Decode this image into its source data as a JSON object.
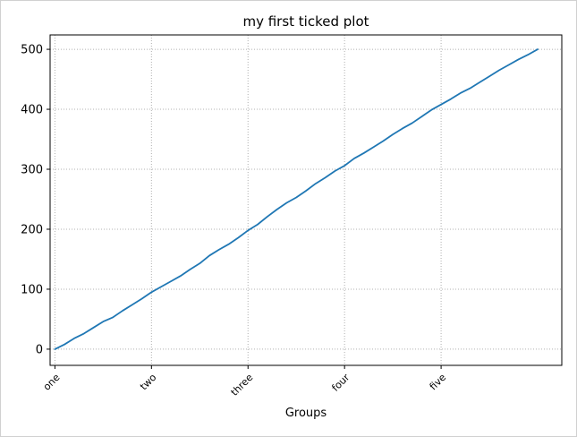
{
  "chart_data": {
    "type": "line",
    "title": "my first ticked plot",
    "xlabel": "Groups",
    "ylabel": "",
    "xlim": [
      -5,
      525
    ],
    "ylim": [
      -27,
      524
    ],
    "xticks": [
      0,
      100,
      200,
      300,
      400
    ],
    "xtick_labels": [
      "one",
      "two",
      "three",
      "four",
      "five"
    ],
    "yticks": [
      0,
      100,
      200,
      300,
      400,
      500
    ],
    "ytick_labels": [
      "0",
      "100",
      "200",
      "300",
      "400",
      "500"
    ],
    "grid": true,
    "series": [
      {
        "color": "#1f77b4",
        "x": [
          0,
          10,
          20,
          30,
          40,
          50,
          60,
          70,
          80,
          90,
          100,
          110,
          120,
          130,
          140,
          150,
          160,
          170,
          180,
          190,
          200,
          210,
          220,
          230,
          240,
          250,
          260,
          270,
          280,
          290,
          300,
          310,
          320,
          330,
          340,
          350,
          360,
          370,
          380,
          390,
          400,
          410,
          420,
          430,
          440,
          450,
          460,
          470,
          480,
          490,
          500
        ],
        "y": [
          0,
          8,
          18,
          26,
          36,
          46,
          53,
          64,
          74,
          84,
          95,
          104,
          113,
          122,
          133,
          143,
          156,
          166,
          175,
          186,
          198,
          208,
          221,
          233,
          244,
          253,
          264,
          276,
          286,
          297,
          306,
          318,
          327,
          337,
          347,
          358,
          368,
          377,
          388,
          399,
          408,
          417,
          427,
          435,
          445,
          455,
          465,
          474,
          483,
          491,
          500
        ]
      }
    ]
  }
}
